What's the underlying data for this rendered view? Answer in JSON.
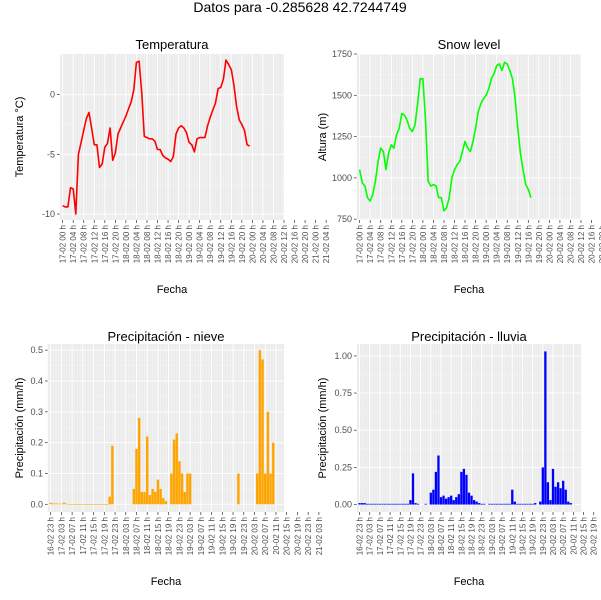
{
  "page_title": "Datos para  -0.285628 42.7244749",
  "colors": {
    "panel_bg": "#ebebeb",
    "grid_major": "#ffffff",
    "grid_minor": "#f5f5f5",
    "tick_text": "#4d4d4d"
  },
  "chart_data": [
    {
      "id": "temp",
      "type": "line",
      "title": "Temperatura",
      "xlabel": "Fecha",
      "ylabel": "Temperatura °C)",
      "color": "#ff0000",
      "xlim": [
        -1,
        84
      ],
      "ylim": [
        -10.5,
        3.4
      ],
      "yticks": [
        -10,
        -5,
        0
      ],
      "ytick_labels": [
        "-10",
        "-5",
        "0"
      ],
      "xtick_labels": [
        "17-02 00 h",
        "17-02 04 h",
        "17-02 08 h",
        "17-02 12 h",
        "17-02 16 h",
        "17-02 20 h",
        "18-02 00 h",
        "18-02 04 h",
        "18-02 08 h",
        "18-02 12 h",
        "18-02 16 h",
        "18-02 20 h",
        "19-02 00 h",
        "19-02 04 h",
        "19-02 08 h",
        "19-02 12 h",
        "19-02 16 h",
        "19-02 20 h",
        "20-02 00 h",
        "20-02 04 h",
        "20-02 08 h",
        "20-02 12 h",
        "20-02 16 h",
        "20-02 20 h",
        "21-02 00 h",
        "21-02 04 h"
      ],
      "xtick_start": 0,
      "xtick_step": 4,
      "x": [
        0,
        1,
        2,
        3,
        4,
        5,
        6,
        7,
        8,
        9,
        10,
        11,
        12,
        13,
        14,
        15,
        16,
        17,
        18,
        19,
        20,
        21,
        22,
        23,
        24,
        25,
        26,
        27,
        28,
        29,
        30,
        31,
        32,
        33,
        34,
        35,
        36,
        37,
        38,
        39,
        40,
        41,
        42,
        43,
        44,
        45,
        46,
        47,
        48,
        49,
        50,
        51,
        52,
        53,
        54,
        55,
        56,
        57,
        58,
        59,
        60,
        61,
        62,
        63,
        64,
        65,
        66,
        67,
        68,
        69,
        70,
        71,
        72,
        73,
        74,
        75,
        76,
        77,
        78
      ],
      "y": [
        -9.3,
        -9.4,
        -9.4,
        -7.8,
        -7.9,
        -10,
        -5,
        -4,
        -3,
        -2,
        -1.5,
        -2.8,
        -4.2,
        -4.2,
        -6.1,
        -5.8,
        -4.4,
        -4.1,
        -2.8,
        -5.5,
        -4.9,
        -3.3,
        -2.8,
        -2.3,
        -1.8,
        -1.2,
        -0.6,
        0.4,
        2.7,
        2.8,
        0.2,
        -3.5,
        -3.6,
        -3.7,
        -3.7,
        -3.9,
        -4.6,
        -4.6,
        -5.1,
        -5.3,
        -5.4,
        -5.6,
        -5.2,
        -3.3,
        -2.8,
        -2.6,
        -2.8,
        -3.2,
        -4,
        -4.2,
        -4.8,
        -3.7,
        -3.6,
        -3.6,
        -3.6,
        -2.6,
        -1.9,
        -1.3,
        -0.7,
        0.5,
        0.6,
        1.3,
        2.9,
        2.5,
        2.1,
        0.8,
        -1,
        -2.1,
        -2.5,
        -3,
        -4.2,
        -4.3,
        null,
        null,
        null,
        null,
        null,
        null,
        null
      ]
    },
    {
      "id": "snow",
      "type": "line",
      "title": "Snow level",
      "xlabel": "Fecha",
      "ylabel": "Altura (m)",
      "color": "#00ff00",
      "xlim": [
        -1,
        84
      ],
      "ylim": [
        745,
        1750
      ],
      "yticks": [
        750,
        1000,
        1250,
        1500,
        1750
      ],
      "ytick_labels": [
        "750",
        "1000",
        "1250",
        "1500",
        "1750"
      ],
      "xtick_labels": [
        "17-02 00 h",
        "17-02 04 h",
        "17-02 08 h",
        "17-02 12 h",
        "17-02 16 h",
        "17-02 20 h",
        "18-02 00 h",
        "18-02 04 h",
        "18-02 08 h",
        "18-02 12 h",
        "18-02 16 h",
        "18-02 20 h",
        "19-02 00 h",
        "19-02 04 h",
        "19-02 08 h",
        "19-02 12 h",
        "19-02 16 h",
        "19-02 20 h",
        "20-02 00 h",
        "20-02 04 h",
        "20-02 08 h",
        "20-02 12 h",
        "20-02 16 h",
        "20-02 20 h",
        "21-02 00 h",
        "21-02 04 h"
      ],
      "xtick_start": 0,
      "xtick_step": 4,
      "x": [
        0,
        1,
        2,
        3,
        4,
        5,
        6,
        7,
        8,
        9,
        10,
        11,
        12,
        13,
        14,
        15,
        16,
        17,
        18,
        19,
        20,
        21,
        22,
        23,
        24,
        25,
        26,
        27,
        28,
        29,
        30,
        31,
        32,
        33,
        34,
        35,
        36,
        37,
        38,
        39,
        40,
        41,
        42,
        43,
        44,
        45,
        46,
        47,
        48,
        49,
        50,
        51,
        52,
        53,
        54,
        55,
        56,
        57,
        58,
        59,
        60,
        61,
        62,
        63,
        64,
        65,
        66,
        67,
        68,
        69,
        70,
        71,
        72,
        73,
        74,
        75,
        76,
        77,
        78
      ],
      "y": [
        1050,
        970,
        950,
        880,
        860,
        900,
        980,
        1100,
        1180,
        1160,
        1050,
        1150,
        1200,
        1180,
        1260,
        1300,
        1390,
        1380,
        1350,
        1300,
        1280,
        1320,
        1450,
        1600,
        1600,
        1350,
        980,
        950,
        960,
        950,
        880,
        880,
        800,
        820,
        880,
        1000,
        1050,
        1080,
        1100,
        1160,
        1220,
        1180,
        1160,
        1220,
        1300,
        1400,
        1450,
        1480,
        1500,
        1540,
        1600,
        1630,
        1680,
        1690,
        1650,
        1700,
        1690,
        1650,
        1600,
        1480,
        1300,
        1150,
        1050,
        960,
        930,
        880,
        null,
        null,
        null,
        null,
        null,
        null,
        null,
        null,
        null,
        null,
        null,
        null,
        null
      ]
    },
    {
      "id": "nieve",
      "type": "bar",
      "title": "Precipitación - nieve",
      "xlabel": "Fecha",
      "ylabel": "Precipitación (mm/h)",
      "color": "#ffa500",
      "xlim": [
        -1,
        87
      ],
      "ylim": [
        -0.025,
        0.52
      ],
      "yticks": [
        0,
        0.1,
        0.2,
        0.3,
        0.4,
        0.5
      ],
      "ytick_labels": [
        "0.0",
        "0.1",
        "0.2",
        "0.3",
        "0.4",
        "0.5"
      ],
      "xtick_labels": [
        "16-02 23 h",
        "17-02 03 h",
        "17-02 07 h",
        "17-02 11 h",
        "17-02 15 h",
        "17-02 19 h",
        "17-02 23 h",
        "18-02 03 h",
        "18-02 07 h",
        "18-02 11 h",
        "18-02 15 h",
        "18-02 19 h",
        "18-02 23 h",
        "19-02 03 h",
        "19-02 07 h",
        "19-02 11 h",
        "19-02 15 h",
        "19-02 19 h",
        "19-02 23 h",
        "20-02 03 h",
        "20-02 07 h",
        "20-02 11 h",
        "20-02 15 h",
        "20-02 19 h",
        "20-02 23 h",
        "21-02 03 h"
      ],
      "xtick_start": 0,
      "xtick_step": 4,
      "x": [
        0,
        1,
        2,
        3,
        4,
        5,
        6,
        7,
        8,
        9,
        10,
        11,
        12,
        13,
        14,
        15,
        16,
        17,
        18,
        19,
        20,
        21,
        22,
        23,
        24,
        25,
        26,
        27,
        28,
        29,
        30,
        31,
        32,
        33,
        34,
        35,
        36,
        37,
        38,
        39,
        40,
        41,
        42,
        43,
        44,
        45,
        46,
        47,
        48,
        49,
        50,
        51,
        52,
        53,
        54,
        55,
        56,
        57,
        58,
        59,
        60,
        61,
        62,
        63,
        64,
        65,
        66,
        67,
        68,
        69,
        70,
        71,
        72,
        73,
        74,
        75,
        76,
        77,
        78,
        79,
        80,
        81,
        82,
        83
      ],
      "values": [
        0.005,
        0.003,
        0.003,
        0.002,
        0.002,
        0.005,
        0.002,
        0.001,
        0.001,
        0.001,
        0.001,
        0.001,
        0.001,
        0.001,
        0.001,
        0.001,
        0.001,
        0.001,
        0.001,
        0.001,
        0.001,
        0.001,
        0.025,
        0.19,
        0,
        0,
        0,
        0,
        0,
        0,
        0,
        0.05,
        0.18,
        0.28,
        0.04,
        0.04,
        0.22,
        0.03,
        0.05,
        0.04,
        0.08,
        0.05,
        0.02,
        0.01,
        0,
        0.1,
        0.21,
        0.23,
        0.14,
        0.1,
        0.04,
        0.1,
        0.1,
        0,
        0,
        0,
        0,
        0,
        0,
        0,
        0,
        0,
        0,
        0,
        0,
        0,
        0,
        0,
        0,
        0,
        0.1,
        0,
        0,
        0,
        0,
        0,
        0,
        0.1,
        0.5,
        0.47,
        0.1,
        0.3,
        0.1,
        0.2
      ]
    },
    {
      "id": "lluvia",
      "type": "bar",
      "title": "Precipitación - lluvia",
      "xlabel": "Fecha",
      "ylabel": "Precipitación (mm/h)",
      "color": "#0000ff",
      "xlim": [
        -1,
        87
      ],
      "ylim": [
        -0.05,
        1.08
      ],
      "yticks": [
        0,
        0.25,
        0.5,
        0.75,
        1.0
      ],
      "ytick_labels": [
        "0.00",
        "0.25",
        "0.50",
        "0.75",
        "1.00"
      ],
      "xtick_labels": [
        "16-02 23 h",
        "17-02 03 h",
        "17-02 07 h",
        "17-02 11 h",
        "17-02 15 h",
        "17-02 19 h",
        "17-02 23 h",
        "18-02 03 h",
        "18-02 07 h",
        "18-02 11 h",
        "18-02 15 h",
        "18-02 19 h",
        "18-02 23 h",
        "19-02 03 h",
        "19-02 07 h",
        "19-02 11 h",
        "19-02 15 h",
        "19-02 19 h",
        "19-02 23 h",
        "20-02 03 h",
        "20-02 07 h",
        "20-02 11 h",
        "20-02 15 h",
        "20-02 19 h",
        "20-02 23 h",
        "21-02 03 h"
      ],
      "xtick_start": 0,
      "xtick_step": 4,
      "x": [
        0,
        1,
        2,
        3,
        4,
        5,
        6,
        7,
        8,
        9,
        10,
        11,
        12,
        13,
        14,
        15,
        16,
        17,
        18,
        19,
        20,
        21,
        22,
        23,
        24,
        25,
        26,
        27,
        28,
        29,
        30,
        31,
        32,
        33,
        34,
        35,
        36,
        37,
        38,
        39,
        40,
        41,
        42,
        43,
        44,
        45,
        46,
        47,
        48,
        49,
        50,
        51,
        52,
        53,
        54,
        55,
        56,
        57,
        58,
        59,
        60,
        61,
        62,
        63,
        64,
        65,
        66,
        67,
        68,
        69,
        70,
        71,
        72,
        73,
        74,
        75,
        76,
        77,
        78,
        79,
        80,
        81,
        82,
        83
      ],
      "values": [
        0.01,
        0.01,
        0.01,
        0.005,
        0.005,
        0.005,
        0.005,
        0.005,
        0.005,
        0.005,
        0.005,
        0.005,
        0.005,
        0.005,
        0.005,
        0.005,
        0.005,
        0.005,
        0.005,
        0.005,
        0.03,
        0.21,
        0.01,
        0.005,
        0,
        0,
        0.005,
        0,
        0.08,
        0.1,
        0.22,
        0.33,
        0.05,
        0.06,
        0.04,
        0.05,
        0.06,
        0.03,
        0.05,
        0.07,
        0.22,
        0.24,
        0.2,
        0.08,
        0.06,
        0.03,
        0.02,
        0.01,
        0.005,
        0.005,
        0,
        0.005,
        0.005,
        0.005,
        0.005,
        0.005,
        0.005,
        0.005,
        0.005,
        0.005,
        0.1,
        0.02,
        0.005,
        0.005,
        0.005,
        0.005,
        0.005,
        0.005,
        0.005,
        0.01,
        0,
        0.02,
        0.25,
        1.03,
        0.15,
        0.03,
        0.24,
        0.12,
        0.15,
        0.11,
        0.16,
        0.1,
        0.02,
        0.01
      ]
    }
  ]
}
